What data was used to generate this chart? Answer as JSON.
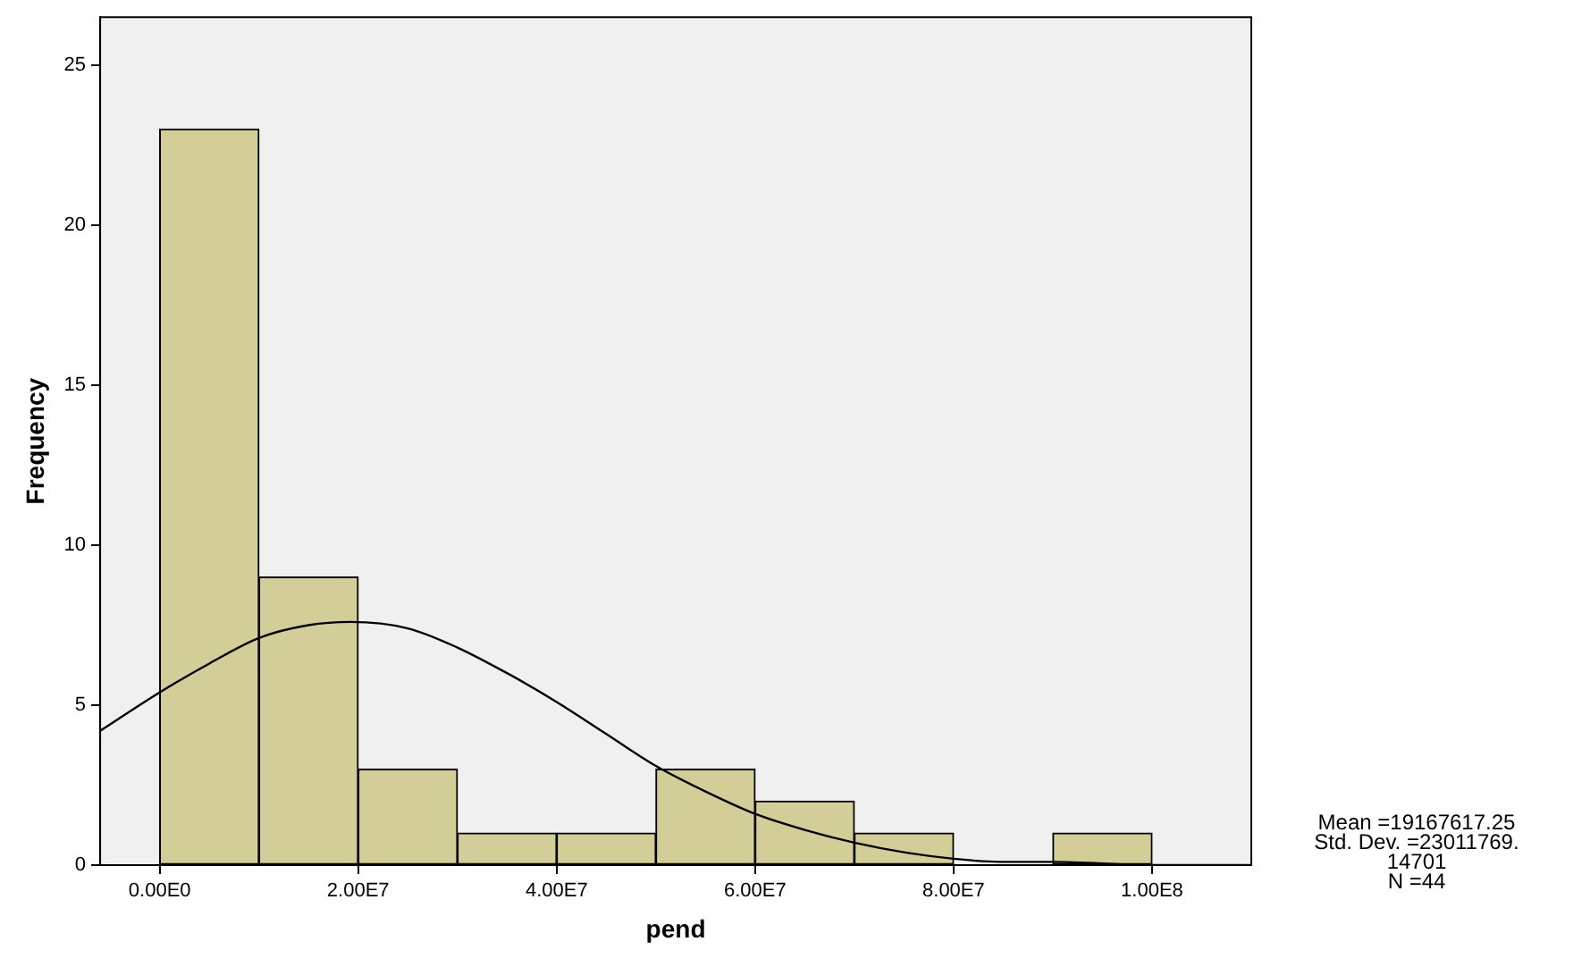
{
  "chart_data": {
    "type": "histogram",
    "xlabel": "pend",
    "ylabel": "Frequency",
    "bins": [
      0,
      10000000,
      20000000,
      30000000,
      40000000,
      50000000,
      60000000,
      70000000,
      80000000,
      90000000,
      100000000
    ],
    "values": [
      23,
      9,
      3,
      1,
      1,
      3,
      2,
      1,
      0,
      1
    ],
    "color": "#d3ce97",
    "series": [
      {
        "type": "line",
        "color": "#000000",
        "x": [
          -6000000,
          0,
          5000000,
          10000000,
          15000000,
          19200000,
          25000000,
          30000000,
          35000000,
          40000000,
          45000000,
          50000000,
          55000000,
          60000000,
          65000000,
          70000000,
          75000000,
          80000000,
          85000000,
          90000000,
          100000000,
          110000000
        ],
        "values": [
          4.2,
          5.4,
          6.3,
          7.1,
          7.5,
          7.6,
          7.4,
          6.8,
          6.0,
          5.1,
          4.1,
          3.1,
          2.3,
          1.6,
          1.1,
          0.7,
          0.4,
          0.2,
          0.1,
          0.1,
          0.0,
          0.0
        ]
      }
    ],
    "xlim": [
      -6000000,
      110000000
    ],
    "ylim": [
      0,
      26.5
    ],
    "xticks": [
      {
        "value": 0,
        "label": "0.00E0"
      },
      {
        "value": 20000000,
        "label": "2.00E7"
      },
      {
        "value": 40000000,
        "label": "4.00E7"
      },
      {
        "value": 60000000,
        "label": "6.00E7"
      },
      {
        "value": 80000000,
        "label": "8.00E7"
      },
      {
        "value": 100000000,
        "label": "1.00E8"
      }
    ],
    "yticks": [
      0,
      5,
      10,
      15,
      20,
      25
    ],
    "grid": false,
    "legend": false,
    "marker": "none",
    "line_style": "solid",
    "annotations": [
      "Mean =19167617.25",
      "Std. Dev. =23011769.",
      "14701",
      "N =44"
    ]
  }
}
